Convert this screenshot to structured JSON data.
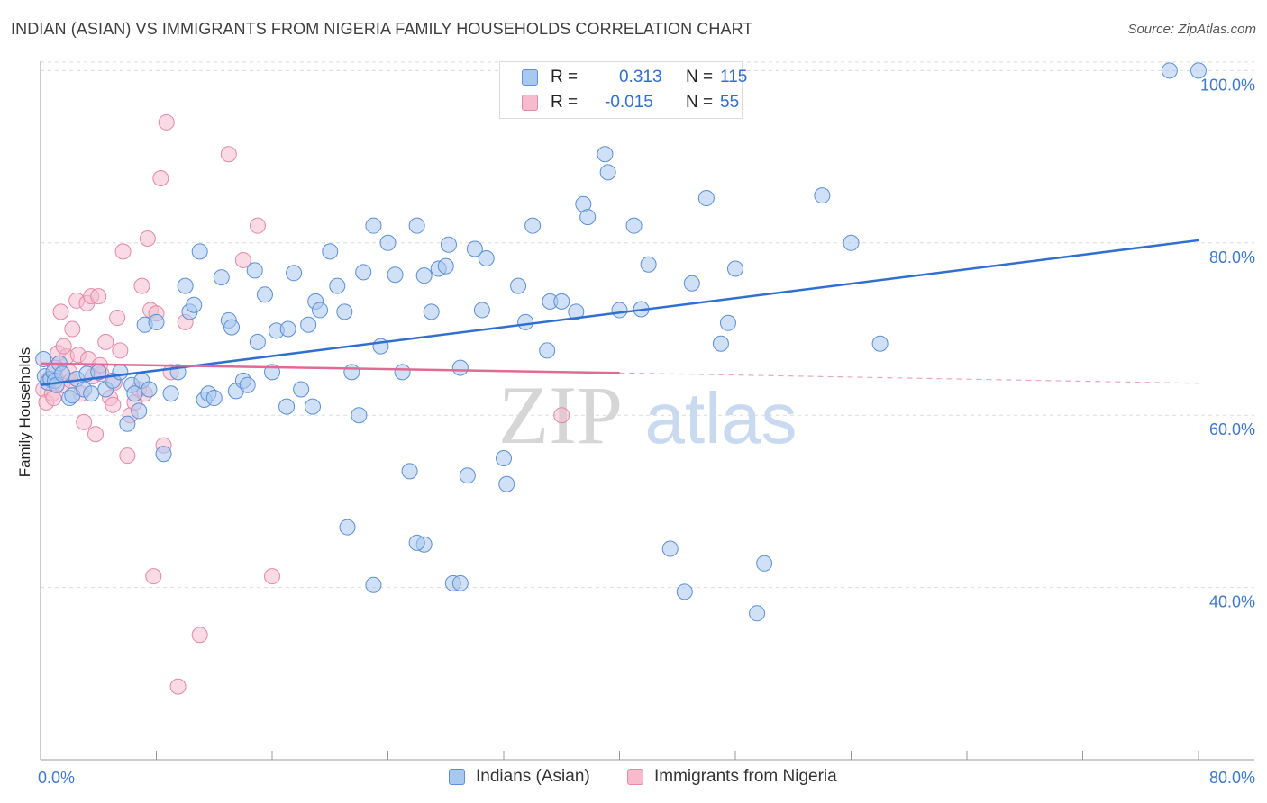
{
  "title": "INDIAN (ASIAN) VS IMMIGRANTS FROM NIGERIA FAMILY HOUSEHOLDS CORRELATION CHART",
  "source": "Source: ZipAtlas.com",
  "watermark": {
    "zip": "ZIP",
    "atlas": "atlas"
  },
  "legend": {
    "r_label": "R =",
    "n_label": "N =",
    "rows": [
      {
        "r": "0.313",
        "n": "115"
      },
      {
        "r": "-0.015",
        "n": "55"
      }
    ]
  },
  "colors": {
    "blue_fill": "#a9c8f0",
    "blue_stroke": "#5b8fd6",
    "blue_line": "#2f6fd1",
    "pink_fill": "#f6bccd",
    "pink_stroke": "#e389a6",
    "pink_line": "#e06a94",
    "axis_text": "#3f78c9",
    "grid": "#dcdcdc"
  },
  "chart_data": {
    "type": "scatter",
    "title": "INDIAN (ASIAN) VS IMMIGRANTS FROM NIGERIA FAMILY HOUSEHOLDS CORRELATION CHART",
    "xlabel": "",
    "ylabel": "Family Households",
    "xlim": [
      0,
      80
    ],
    "ylim": [
      20,
      104
    ],
    "x_ticks": [
      0,
      80
    ],
    "x_tick_labels": [
      "0.0%",
      "80.0%"
    ],
    "y_ticks": [
      40,
      60,
      80,
      100
    ],
    "y_tick_labels": [
      "40.0%",
      "60.0%",
      "80.0%",
      "100.0%"
    ],
    "grid": "horizontal dashed",
    "legend_position": "top-center",
    "series": [
      {
        "name": "Indians (Asian)",
        "color": "blue",
        "r": 0.313,
        "n": 115,
        "trend": {
          "x": [
            0,
            80
          ],
          "y": [
            63.5,
            80.3
          ]
        },
        "points": [
          [
            0.2,
            66.5
          ],
          [
            0.3,
            64.5
          ],
          [
            0.5,
            63.8
          ],
          [
            0.7,
            64.2
          ],
          [
            0.9,
            65.0
          ],
          [
            1.0,
            64.0
          ],
          [
            1.1,
            63.5
          ],
          [
            1.3,
            66.0
          ],
          [
            1.5,
            64.8
          ],
          [
            2.0,
            62.0
          ],
          [
            2.2,
            62.3
          ],
          [
            2.5,
            64.2
          ],
          [
            3.0,
            63.0
          ],
          [
            3.2,
            64.8
          ],
          [
            3.5,
            62.5
          ],
          [
            4.0,
            65.0
          ],
          [
            4.5,
            63.0
          ],
          [
            5.0,
            64.0
          ],
          [
            5.5,
            65.0
          ],
          [
            6.0,
            59.0
          ],
          [
            6.3,
            63.5
          ],
          [
            6.5,
            62.5
          ],
          [
            6.8,
            60.5
          ],
          [
            7.0,
            64.0
          ],
          [
            7.2,
            70.5
          ],
          [
            7.5,
            63.0
          ],
          [
            8.0,
            70.8
          ],
          [
            8.5,
            55.5
          ],
          [
            9.0,
            62.5
          ],
          [
            9.5,
            65.0
          ],
          [
            10.0,
            75.0
          ],
          [
            10.3,
            72.0
          ],
          [
            10.6,
            72.8
          ],
          [
            11.0,
            79.0
          ],
          [
            11.3,
            61.8
          ],
          [
            11.6,
            62.5
          ],
          [
            12.0,
            62.0
          ],
          [
            12.5,
            76.0
          ],
          [
            13.0,
            71.0
          ],
          [
            13.2,
            70.2
          ],
          [
            13.5,
            62.8
          ],
          [
            14.0,
            64.0
          ],
          [
            14.3,
            63.5
          ],
          [
            14.8,
            76.8
          ],
          [
            15.0,
            68.5
          ],
          [
            15.5,
            74.0
          ],
          [
            16.0,
            65.0
          ],
          [
            16.3,
            69.8
          ],
          [
            17.0,
            61.0
          ],
          [
            17.1,
            70.0
          ],
          [
            17.5,
            76.5
          ],
          [
            18.0,
            63.0
          ],
          [
            18.5,
            70.5
          ],
          [
            18.8,
            61.0
          ],
          [
            19.0,
            73.2
          ],
          [
            19.3,
            72.2
          ],
          [
            20.0,
            79.0
          ],
          [
            20.5,
            75.0
          ],
          [
            21.0,
            72.0
          ],
          [
            21.5,
            65.0
          ],
          [
            22.0,
            60.0
          ],
          [
            22.3,
            76.6
          ],
          [
            23.0,
            82.0
          ],
          [
            23.5,
            68.0
          ],
          [
            24.0,
            80.0
          ],
          [
            24.5,
            76.3
          ],
          [
            25.0,
            65.0
          ],
          [
            25.5,
            53.5
          ],
          [
            26.0,
            82.0
          ],
          [
            26.5,
            45.0
          ],
          [
            26.5,
            76.2
          ],
          [
            27.0,
            72.0
          ],
          [
            27.5,
            77.0
          ],
          [
            28.0,
            77.3
          ],
          [
            28.2,
            79.8
          ],
          [
            28.5,
            40.5
          ],
          [
            29.0,
            65.5
          ],
          [
            29.5,
            53.0
          ],
          [
            30.0,
            79.3
          ],
          [
            30.5,
            72.2
          ],
          [
            30.8,
            78.2
          ],
          [
            32.0,
            55.0
          ],
          [
            32.2,
            52.0
          ],
          [
            33.0,
            75.0
          ],
          [
            33.5,
            70.8
          ],
          [
            34.0,
            82.0
          ],
          [
            35.0,
            67.5
          ],
          [
            35.2,
            73.2
          ],
          [
            36.0,
            73.2
          ],
          [
            37.0,
            72.0
          ],
          [
            37.5,
            84.5
          ],
          [
            37.8,
            83.0
          ],
          [
            39.0,
            90.3
          ],
          [
            39.2,
            88.2
          ],
          [
            40.0,
            72.2
          ],
          [
            41.0,
            82.0
          ],
          [
            41.5,
            72.3
          ],
          [
            42.0,
            77.5
          ],
          [
            43.5,
            44.5
          ],
          [
            44.5,
            39.5
          ],
          [
            45.0,
            75.3
          ],
          [
            46.0,
            85.2
          ],
          [
            47.0,
            68.3
          ],
          [
            47.5,
            70.7
          ],
          [
            48.0,
            77.0
          ],
          [
            50.0,
            42.8
          ],
          [
            49.5,
            37.0
          ],
          [
            54.0,
            85.5
          ],
          [
            56.0,
            80.0
          ],
          [
            58.0,
            68.3
          ],
          [
            78.0,
            100.0
          ],
          [
            80.0,
            100.0
          ],
          [
            21.2,
            47.0
          ],
          [
            26.0,
            45.2
          ],
          [
            23.0,
            40.3
          ],
          [
            29.0,
            40.5
          ]
        ]
      },
      {
        "name": "Immigrants from Nigeria",
        "color": "pink",
        "r": -0.015,
        "n": 55,
        "trend": {
          "x": [
            0,
            40
          ],
          "y": [
            66.0,
            64.9
          ]
        },
        "trend_dashed": {
          "x": [
            40,
            80
          ],
          "y": [
            64.9,
            63.7
          ]
        },
        "points": [
          [
            0.2,
            63.0
          ],
          [
            0.4,
            61.5
          ],
          [
            0.6,
            64.2
          ],
          [
            0.8,
            62.5
          ],
          [
            1.0,
            65.5
          ],
          [
            1.2,
            67.2
          ],
          [
            1.4,
            72.0
          ],
          [
            1.5,
            63.5
          ],
          [
            1.8,
            66.8
          ],
          [
            2.0,
            65.0
          ],
          [
            2.2,
            70.0
          ],
          [
            2.5,
            73.3
          ],
          [
            2.6,
            67.0
          ],
          [
            2.8,
            62.5
          ],
          [
            3.0,
            59.2
          ],
          [
            3.2,
            73.0
          ],
          [
            3.5,
            73.8
          ],
          [
            3.6,
            64.5
          ],
          [
            3.8,
            57.8
          ],
          [
            4.0,
            73.8
          ],
          [
            4.2,
            64.8
          ],
          [
            4.5,
            68.5
          ],
          [
            4.8,
            62.0
          ],
          [
            5.0,
            61.2
          ],
          [
            5.3,
            71.3
          ],
          [
            5.5,
            67.5
          ],
          [
            5.7,
            79.0
          ],
          [
            6.0,
            55.3
          ],
          [
            6.2,
            60.0
          ],
          [
            6.5,
            61.5
          ],
          [
            6.8,
            63.0
          ],
          [
            7.0,
            75.0
          ],
          [
            7.2,
            62.5
          ],
          [
            7.4,
            80.5
          ],
          [
            7.6,
            72.2
          ],
          [
            7.8,
            41.3
          ],
          [
            8.0,
            71.8
          ],
          [
            8.3,
            87.5
          ],
          [
            8.5,
            56.5
          ],
          [
            8.7,
            94.0
          ],
          [
            9.0,
            65.0
          ],
          [
            9.5,
            28.5
          ],
          [
            10.0,
            70.8
          ],
          [
            11.0,
            34.5
          ],
          [
            13.0,
            90.3
          ],
          [
            14.0,
            78.0
          ],
          [
            15.0,
            82.0
          ],
          [
            16.0,
            41.3
          ],
          [
            36.0,
            60.0
          ],
          [
            0.9,
            62.0
          ],
          [
            1.6,
            68.0
          ],
          [
            2.1,
            64.0
          ],
          [
            3.3,
            66.5
          ],
          [
            4.1,
            65.8
          ],
          [
            5.1,
            63.8
          ]
        ]
      }
    ]
  }
}
